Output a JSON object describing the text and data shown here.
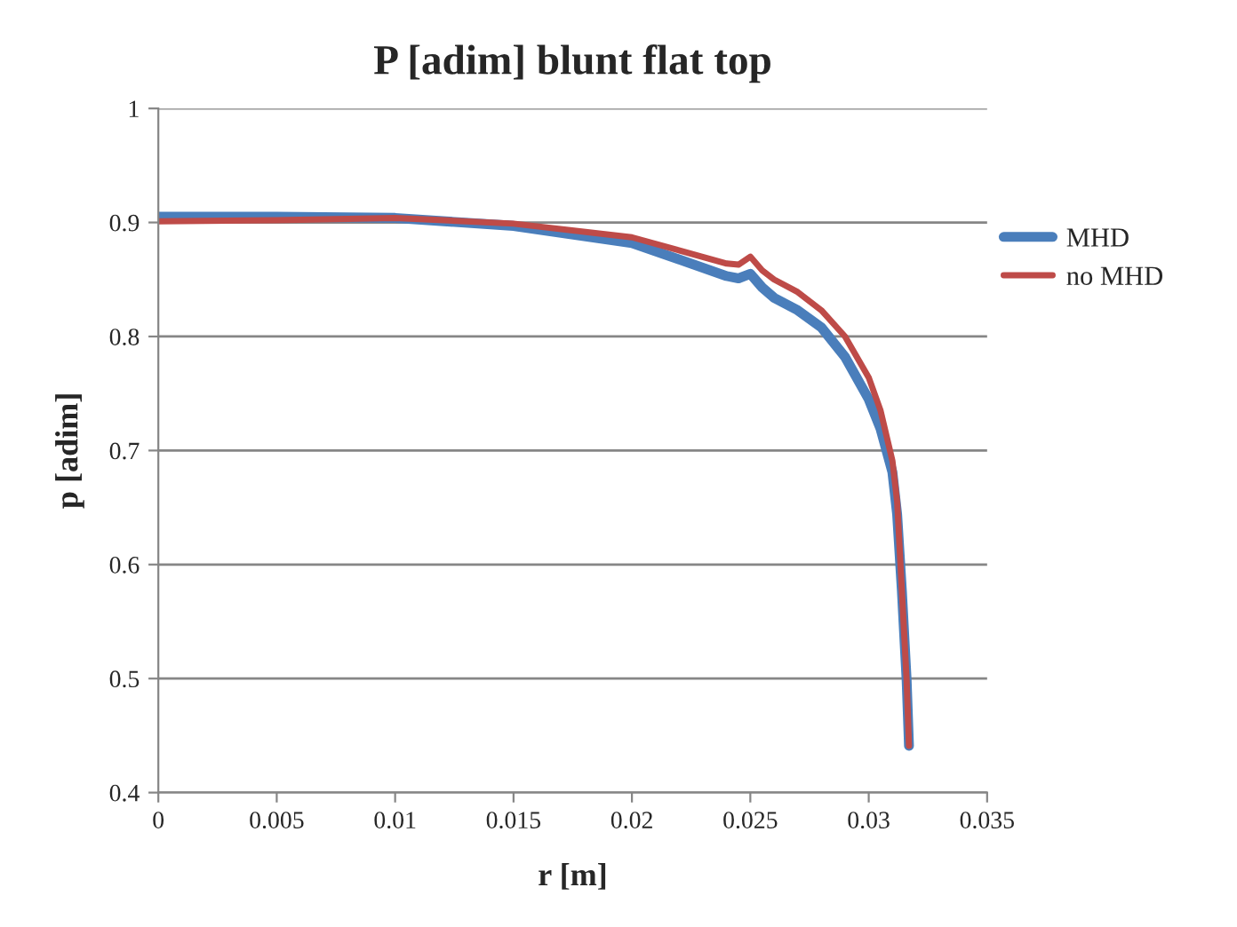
{
  "chart_data": {
    "type": "line",
    "title": "P [adim] blunt flat top",
    "xlabel": "r [m]",
    "ylabel": "p [adim]",
    "xlim": [
      0,
      0.035
    ],
    "xticks": [
      0,
      0.005,
      0.01,
      0.015,
      0.02,
      0.025,
      0.03,
      0.035
    ],
    "ylim": [
      0.4,
      1
    ],
    "yticks": [
      0.4,
      0.5,
      0.6,
      0.7,
      0.8,
      0.9,
      1
    ],
    "grid": "y",
    "legend": "right",
    "marker": "none",
    "line_style": "solid",
    "series": [
      {
        "name": "MHD",
        "color": "#4a7ebb",
        "x": [
          0,
          0.005,
          0.01,
          0.015,
          0.02,
          0.024,
          0.0245,
          0.025,
          0.0255,
          0.026,
          0.027,
          0.028,
          0.029,
          0.03,
          0.0305,
          0.031,
          0.0312,
          0.0314,
          0.0316,
          0.0317
        ],
        "values": [
          0.905,
          0.905,
          0.904,
          0.897,
          0.882,
          0.853,
          0.851,
          0.855,
          0.843,
          0.834,
          0.823,
          0.808,
          0.782,
          0.745,
          0.719,
          0.681,
          0.644,
          0.577,
          0.499,
          0.441
        ]
      },
      {
        "name": "no MHD",
        "color": "#be4b48",
        "x": [
          0,
          0.005,
          0.01,
          0.015,
          0.02,
          0.024,
          0.0245,
          0.025,
          0.0255,
          0.026,
          0.027,
          0.028,
          0.029,
          0.03,
          0.0305,
          0.031,
          0.0312,
          0.0314,
          0.0316,
          0.0317
        ],
        "values": [
          0.901,
          0.902,
          0.904,
          0.899,
          0.887,
          0.864,
          0.863,
          0.87,
          0.858,
          0.85,
          0.839,
          0.823,
          0.8,
          0.764,
          0.735,
          0.691,
          0.655,
          0.577,
          0.499,
          0.441
        ]
      }
    ]
  }
}
